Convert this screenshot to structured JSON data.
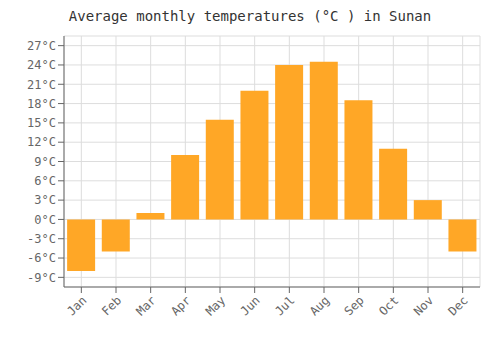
{
  "chart_data": {
    "type": "bar",
    "title": "Average monthly temperatures (°C ) in Sunan",
    "categories": [
      "Jan",
      "Feb",
      "Mar",
      "Apr",
      "May",
      "Jun",
      "Jul",
      "Aug",
      "Sep",
      "Oct",
      "Nov",
      "Dec"
    ],
    "values": [
      -8,
      -5,
      1,
      10,
      15.5,
      20,
      24,
      24.5,
      18.5,
      11,
      3,
      -5
    ],
    "color": "#FFA726",
    "ylim": [
      -10.5,
      28.5
    ],
    "yticks": [
      {
        "value": -9,
        "label": "-9°C"
      },
      {
        "value": -6,
        "label": "-6°C"
      },
      {
        "value": -3,
        "label": "-3°C"
      },
      {
        "value": 0,
        "label": "0°C"
      },
      {
        "value": 3,
        "label": "3°C"
      },
      {
        "value": 6,
        "label": "6°C"
      },
      {
        "value": 9,
        "label": "9°C"
      },
      {
        "value": 12,
        "label": "12°C"
      },
      {
        "value": 15,
        "label": "15°C"
      },
      {
        "value": 18,
        "label": "18°C"
      },
      {
        "value": 21,
        "label": "21°C"
      },
      {
        "value": 24,
        "label": "24°C"
      },
      {
        "value": 27,
        "label": "27°C"
      }
    ],
    "grid": true
  }
}
